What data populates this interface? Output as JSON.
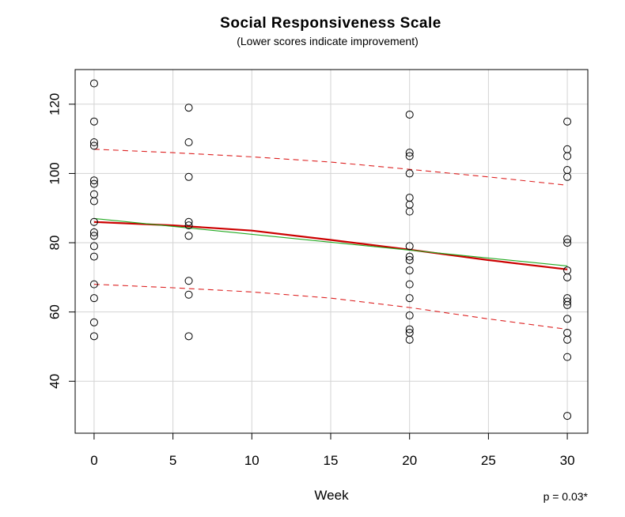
{
  "chart_data": {
    "type": "scatter",
    "title": "Social Responsiveness Scale",
    "subtitle": "(Lower scores indicate improvement)",
    "xlabel": "Week",
    "ylabel": "",
    "annotation": "p = 0.03*",
    "xlim": [
      -1.2,
      31.3
    ],
    "ylim": [
      25,
      130
    ],
    "xticks": [
      0,
      5,
      10,
      15,
      20,
      25,
      30
    ],
    "yticks": [
      40,
      60,
      80,
      100,
      120
    ],
    "grid": true,
    "points": [
      {
        "x": 0,
        "y": 126
      },
      {
        "x": 0,
        "y": 115
      },
      {
        "x": 0,
        "y": 109
      },
      {
        "x": 0,
        "y": 108
      },
      {
        "x": 0,
        "y": 98
      },
      {
        "x": 0,
        "y": 97
      },
      {
        "x": 0,
        "y": 94
      },
      {
        "x": 0,
        "y": 92
      },
      {
        "x": 0,
        "y": 86
      },
      {
        "x": 0,
        "y": 83
      },
      {
        "x": 0,
        "y": 82
      },
      {
        "x": 0,
        "y": 79
      },
      {
        "x": 0,
        "y": 76
      },
      {
        "x": 0,
        "y": 68
      },
      {
        "x": 0,
        "y": 64
      },
      {
        "x": 0,
        "y": 57
      },
      {
        "x": 0,
        "y": 53
      },
      {
        "x": 6,
        "y": 119
      },
      {
        "x": 6,
        "y": 109
      },
      {
        "x": 6,
        "y": 99
      },
      {
        "x": 6,
        "y": 86
      },
      {
        "x": 6,
        "y": 85
      },
      {
        "x": 6,
        "y": 82
      },
      {
        "x": 6,
        "y": 69
      },
      {
        "x": 6,
        "y": 65
      },
      {
        "x": 6,
        "y": 53
      },
      {
        "x": 20,
        "y": 117
      },
      {
        "x": 20,
        "y": 106
      },
      {
        "x": 20,
        "y": 105
      },
      {
        "x": 20,
        "y": 100
      },
      {
        "x": 20,
        "y": 93
      },
      {
        "x": 20,
        "y": 91
      },
      {
        "x": 20,
        "y": 89
      },
      {
        "x": 20,
        "y": 79
      },
      {
        "x": 20,
        "y": 76
      },
      {
        "x": 20,
        "y": 75
      },
      {
        "x": 20,
        "y": 72
      },
      {
        "x": 20,
        "y": 68
      },
      {
        "x": 20,
        "y": 64
      },
      {
        "x": 20,
        "y": 59
      },
      {
        "x": 20,
        "y": 55
      },
      {
        "x": 20,
        "y": 54
      },
      {
        "x": 20,
        "y": 52
      },
      {
        "x": 30,
        "y": 115
      },
      {
        "x": 30,
        "y": 107
      },
      {
        "x": 30,
        "y": 105
      },
      {
        "x": 30,
        "y": 101
      },
      {
        "x": 30,
        "y": 99
      },
      {
        "x": 30,
        "y": 81
      },
      {
        "x": 30,
        "y": 80
      },
      {
        "x": 30,
        "y": 72
      },
      {
        "x": 30,
        "y": 70
      },
      {
        "x": 30,
        "y": 64
      },
      {
        "x": 30,
        "y": 63
      },
      {
        "x": 30,
        "y": 62
      },
      {
        "x": 30,
        "y": 58
      },
      {
        "x": 30,
        "y": 54
      },
      {
        "x": 30,
        "y": 52
      },
      {
        "x": 30,
        "y": 47
      },
      {
        "x": 30,
        "y": 30
      }
    ],
    "series": [
      {
        "style": "solid",
        "color": "#cc0000",
        "x": [
          0,
          5,
          10,
          15,
          20,
          25,
          30
        ],
        "y": [
          86,
          85,
          83.5,
          80.8,
          78,
          75,
          72.3
        ]
      },
      {
        "style": "solid",
        "color": "#22aa22",
        "x": [
          0,
          30
        ],
        "y": [
          87,
          73.3
        ]
      },
      {
        "style": "dashed",
        "color": "#dd2222",
        "x": [
          0,
          5,
          10,
          15,
          20,
          25,
          30
        ],
        "y": [
          107,
          106,
          104.8,
          103.3,
          101.2,
          99,
          96.6
        ]
      },
      {
        "style": "dashed",
        "color": "#dd2222",
        "x": [
          0,
          5,
          10,
          15,
          20,
          25,
          30
        ],
        "y": [
          68,
          67,
          65.8,
          64,
          61.3,
          58,
          55
        ]
      }
    ]
  }
}
